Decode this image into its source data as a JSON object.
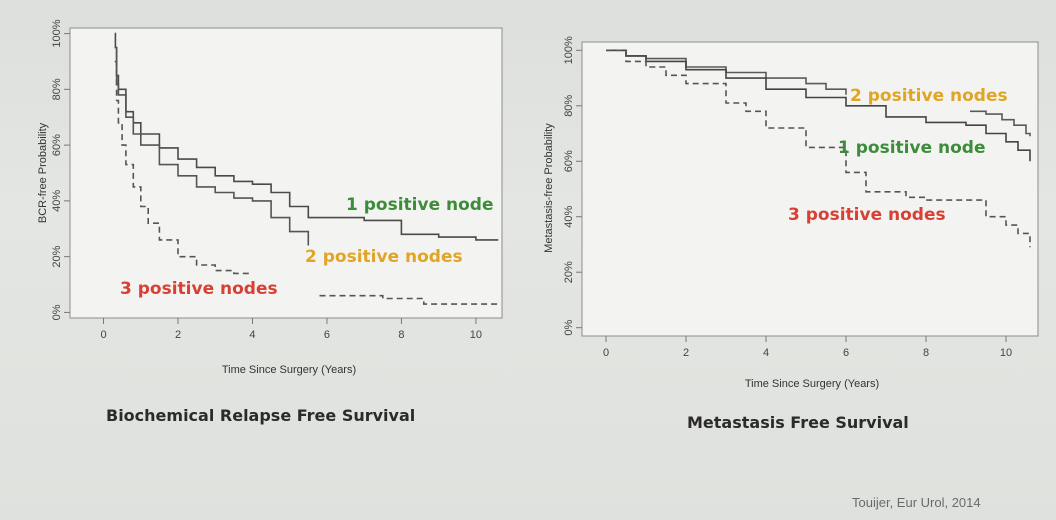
{
  "citation": "Touijer, Eur Urol, 2014",
  "chart_data": [
    {
      "type": "line",
      "caption": "Biochemical Relapse Free Survival",
      "xlabel": "Time Since Surgery (Years)",
      "ylabel": "BCR-free Probability",
      "xlim": [
        -0.9,
        10.7
      ],
      "ylim": [
        -0.02,
        1.02
      ],
      "xticks": [
        0,
        2,
        4,
        6,
        8,
        10
      ],
      "xtick_labels": [
        "0",
        "2",
        "4",
        "6",
        "8",
        "10"
      ],
      "yticks": [
        0,
        0.2,
        0.4,
        0.6,
        0.8,
        1.0
      ],
      "ytick_labels": [
        "0%",
        "20%",
        "40%",
        "60%",
        "80%",
        "100%"
      ],
      "grid": false,
      "series": [
        {
          "name": "1 positive node",
          "color": "#3d8c3a",
          "line_color": "#4a4a4a",
          "dash": "solid",
          "x": [
            0.3,
            0.32,
            0.35,
            0.4,
            0.6,
            0.8,
            1.0,
            1.5,
            2.0,
            2.5,
            3.0,
            3.5,
            4.0,
            4.5,
            5.0,
            5.5,
            6.0,
            7.0,
            8.0,
            9.0,
            10.0,
            10.6
          ],
          "y": [
            1.0,
            0.95,
            0.85,
            0.8,
            0.72,
            0.68,
            0.64,
            0.59,
            0.55,
            0.52,
            0.49,
            0.47,
            0.46,
            0.43,
            0.38,
            0.34,
            0.34,
            0.33,
            0.28,
            0.27,
            0.26,
            0.26
          ]
        },
        {
          "name": "2 positive nodes",
          "color": "#e0a525",
          "line_color": "#555555",
          "dash": "solid",
          "x": [
            0.3,
            0.35,
            0.4,
            0.6,
            0.8,
            1.0,
            1.5,
            2.0,
            2.5,
            3.0,
            3.5,
            4.0,
            4.5,
            5.0,
            5.5
          ],
          "y": [
            0.95,
            0.82,
            0.78,
            0.7,
            0.64,
            0.6,
            0.53,
            0.49,
            0.45,
            0.43,
            0.41,
            0.4,
            0.34,
            0.29,
            0.24
          ]
        },
        {
          "name": "3 positive nodes",
          "color": "#d94034",
          "line_color": "#555555",
          "dash": "dashed",
          "x": [
            0.3,
            0.35,
            0.4,
            0.5,
            0.6,
            0.8,
            1.0,
            1.2,
            1.5,
            2.0,
            2.5,
            3.0,
            3.5,
            4.0
          ],
          "y": [
            0.9,
            0.76,
            0.68,
            0.6,
            0.53,
            0.45,
            0.38,
            0.32,
            0.26,
            0.2,
            0.17,
            0.15,
            0.14,
            0.14
          ]
        },
        {
          "name": "3 positive nodes",
          "color": "#d94034",
          "line_color": "#555555",
          "dash": "dashed",
          "x": [
            5.8,
            6.5,
            7.0,
            7.5,
            8.0,
            8.6,
            9.0,
            10.0,
            10.6
          ],
          "y": [
            0.06,
            0.06,
            0.06,
            0.05,
            0.05,
            0.03,
            0.03,
            0.03,
            0.03
          ]
        }
      ],
      "annotations": [
        {
          "text": "1 positive node",
          "color": "#3d8c3a"
        },
        {
          "text": "2 positive nodes",
          "color": "#e0a525"
        },
        {
          "text": "3 positive nodes",
          "color": "#d94034"
        }
      ]
    },
    {
      "type": "line",
      "caption": "Metastasis Free Survival",
      "xlabel": "Time Since Surgery (Years)",
      "ylabel": "Metastasis-free Probability",
      "xlim": [
        -0.6,
        10.8
      ],
      "ylim": [
        -0.03,
        1.03
      ],
      "xticks": [
        0,
        2,
        4,
        6,
        8,
        10
      ],
      "xtick_labels": [
        "0",
        "2",
        "4",
        "6",
        "8",
        "10"
      ],
      "yticks": [
        0,
        0.2,
        0.4,
        0.6,
        0.8,
        1.0
      ],
      "ytick_labels": [
        "0%",
        "20%",
        "40%",
        "60%",
        "80%",
        "100%"
      ],
      "grid": false,
      "series": [
        {
          "name": "2 positive nodes",
          "color": "#e0a525",
          "line_color": "#5a5a5a",
          "dash": "solid",
          "x": [
            0,
            0.5,
            1,
            2,
            3,
            4,
            5,
            5.5,
            6.0
          ],
          "y": [
            1.0,
            0.98,
            0.97,
            0.94,
            0.92,
            0.9,
            0.88,
            0.86,
            0.84
          ]
        },
        {
          "name": "2 positive nodes",
          "color": "#e0a525",
          "line_color": "#5a5a5a",
          "dash": "solid",
          "x": [
            9.1,
            9.5,
            9.9,
            10.2,
            10.5,
            10.6
          ],
          "y": [
            0.78,
            0.77,
            0.75,
            0.73,
            0.7,
            0.69
          ]
        },
        {
          "name": "1 positive node",
          "color": "#3d8c3a",
          "line_color": "#444444",
          "dash": "solid",
          "x": [
            0,
            0.5,
            1,
            2,
            3,
            4,
            5,
            6,
            7,
            8,
            8.5,
            9,
            9.5,
            10,
            10.3,
            10.6
          ],
          "y": [
            1.0,
            0.98,
            0.96,
            0.93,
            0.9,
            0.86,
            0.83,
            0.8,
            0.76,
            0.74,
            0.74,
            0.73,
            0.7,
            0.67,
            0.64,
            0.6
          ]
        },
        {
          "name": "3 positive nodes",
          "color": "#d94034",
          "line_color": "#555555",
          "dash": "dashed",
          "x": [
            0,
            0.5,
            1,
            1.5,
            2,
            3,
            3.5,
            4,
            5,
            6,
            6.5,
            7,
            7.5,
            8,
            9,
            9.5,
            10,
            10.3,
            10.6
          ],
          "y": [
            1.0,
            0.96,
            0.94,
            0.91,
            0.88,
            0.81,
            0.78,
            0.72,
            0.65,
            0.56,
            0.49,
            0.49,
            0.47,
            0.46,
            0.46,
            0.4,
            0.37,
            0.34,
            0.29
          ]
        }
      ],
      "annotations": [
        {
          "text": "2 positive nodes",
          "color": "#e0a525"
        },
        {
          "text": "1 positive node",
          "color": "#3d8c3a"
        },
        {
          "text": "3 positive nodes",
          "color": "#d94034"
        }
      ]
    }
  ]
}
